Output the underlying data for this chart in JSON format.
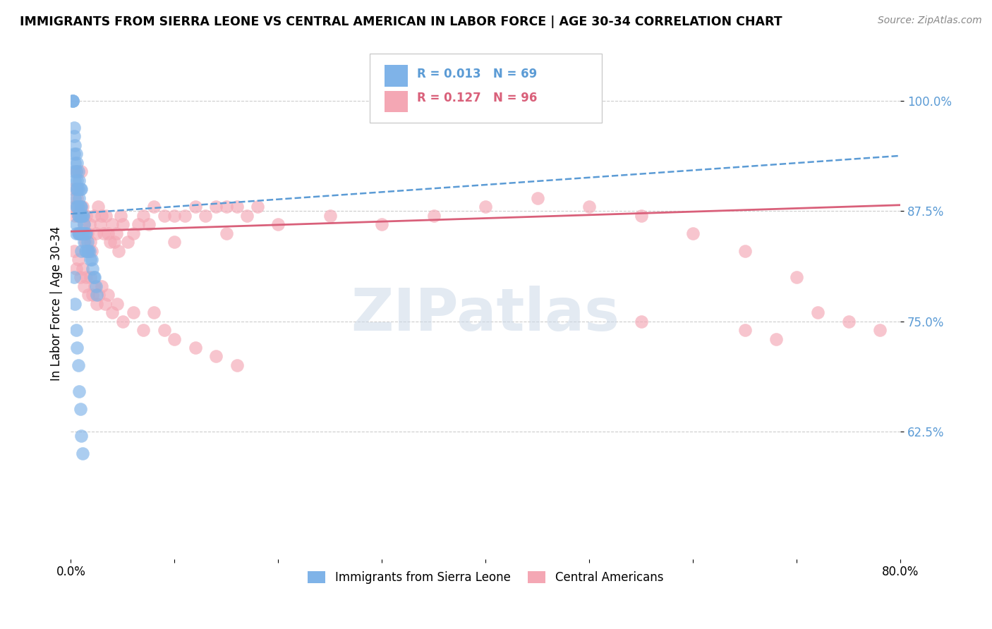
{
  "title": "IMMIGRANTS FROM SIERRA LEONE VS CENTRAL AMERICAN IN LABOR FORCE | AGE 30-34 CORRELATION CHART",
  "source": "Source: ZipAtlas.com",
  "ylabel": "In Labor Force | Age 30-34",
  "y_tick_labels": [
    "62.5%",
    "75.0%",
    "87.5%",
    "100.0%"
  ],
  "y_tick_values": [
    0.625,
    0.75,
    0.875,
    1.0
  ],
  "x_lim": [
    0.0,
    0.8
  ],
  "y_lim": [
    0.48,
    1.06
  ],
  "legend_r1": "R = 0.013",
  "legend_n1": "N = 69",
  "legend_r2": "R = 0.127",
  "legend_n2": "N = 96",
  "legend_label1": "Immigrants from Sierra Leone",
  "legend_label2": "Central Americans",
  "blue_color": "#7fb3e8",
  "pink_color": "#f4a7b4",
  "blue_line_color": "#5b9bd5",
  "pink_line_color": "#d9607a",
  "watermark": "ZIPatlas",
  "blue_scatter_x": [
    0.002,
    0.002,
    0.002,
    0.003,
    0.003,
    0.003,
    0.003,
    0.004,
    0.004,
    0.004,
    0.004,
    0.005,
    0.005,
    0.005,
    0.005,
    0.005,
    0.005,
    0.006,
    0.006,
    0.006,
    0.006,
    0.007,
    0.007,
    0.007,
    0.007,
    0.007,
    0.008,
    0.008,
    0.008,
    0.008,
    0.009,
    0.009,
    0.009,
    0.009,
    0.01,
    0.01,
    0.01,
    0.01,
    0.01,
    0.011,
    0.011,
    0.012,
    0.012,
    0.013,
    0.013,
    0.014,
    0.014,
    0.015,
    0.015,
    0.016,
    0.016,
    0.017,
    0.018,
    0.019,
    0.02,
    0.021,
    0.022,
    0.023,
    0.024,
    0.025,
    0.003,
    0.004,
    0.005,
    0.006,
    0.007,
    0.008,
    0.009,
    0.01,
    0.011
  ],
  "blue_scatter_y": [
    1.0,
    1.0,
    1.0,
    0.97,
    0.96,
    0.94,
    0.92,
    0.95,
    0.93,
    0.91,
    0.89,
    0.94,
    0.92,
    0.9,
    0.88,
    0.86,
    0.85,
    0.93,
    0.91,
    0.9,
    0.88,
    0.92,
    0.9,
    0.88,
    0.87,
    0.85,
    0.91,
    0.89,
    0.87,
    0.85,
    0.9,
    0.88,
    0.87,
    0.85,
    0.9,
    0.88,
    0.87,
    0.85,
    0.83,
    0.87,
    0.85,
    0.87,
    0.85,
    0.86,
    0.84,
    0.85,
    0.83,
    0.85,
    0.83,
    0.84,
    0.83,
    0.83,
    0.83,
    0.82,
    0.82,
    0.81,
    0.8,
    0.8,
    0.79,
    0.78,
    0.8,
    0.77,
    0.74,
    0.72,
    0.7,
    0.67,
    0.65,
    0.62,
    0.6
  ],
  "pink_scatter_x": [
    0.002,
    0.003,
    0.004,
    0.005,
    0.006,
    0.007,
    0.008,
    0.009,
    0.01,
    0.011,
    0.012,
    0.013,
    0.014,
    0.015,
    0.016,
    0.017,
    0.018,
    0.019,
    0.02,
    0.022,
    0.024,
    0.026,
    0.028,
    0.03,
    0.032,
    0.034,
    0.036,
    0.038,
    0.04,
    0.042,
    0.044,
    0.046,
    0.048,
    0.05,
    0.055,
    0.06,
    0.065,
    0.07,
    0.075,
    0.08,
    0.09,
    0.1,
    0.11,
    0.12,
    0.13,
    0.14,
    0.15,
    0.16,
    0.17,
    0.18,
    0.003,
    0.005,
    0.007,
    0.009,
    0.011,
    0.013,
    0.015,
    0.017,
    0.019,
    0.021,
    0.023,
    0.025,
    0.027,
    0.03,
    0.033,
    0.036,
    0.04,
    0.045,
    0.05,
    0.06,
    0.07,
    0.08,
    0.09,
    0.1,
    0.12,
    0.14,
    0.16,
    0.55,
    0.65,
    0.68,
    0.72,
    0.75,
    0.78,
    0.7,
    0.65,
    0.6,
    0.55,
    0.5,
    0.45,
    0.4,
    0.35,
    0.3,
    0.25,
    0.2,
    0.15,
    0.1
  ],
  "pink_scatter_y": [
    0.9,
    0.88,
    0.87,
    0.92,
    0.89,
    0.87,
    0.85,
    0.88,
    0.92,
    0.88,
    0.87,
    0.86,
    0.84,
    0.87,
    0.85,
    0.83,
    0.86,
    0.84,
    0.83,
    0.87,
    0.85,
    0.88,
    0.86,
    0.87,
    0.85,
    0.87,
    0.85,
    0.84,
    0.86,
    0.84,
    0.85,
    0.83,
    0.87,
    0.86,
    0.84,
    0.85,
    0.86,
    0.87,
    0.86,
    0.88,
    0.87,
    0.87,
    0.87,
    0.88,
    0.87,
    0.88,
    0.88,
    0.88,
    0.87,
    0.88,
    0.83,
    0.81,
    0.82,
    0.8,
    0.81,
    0.79,
    0.8,
    0.78,
    0.8,
    0.78,
    0.79,
    0.77,
    0.78,
    0.79,
    0.77,
    0.78,
    0.76,
    0.77,
    0.75,
    0.76,
    0.74,
    0.76,
    0.74,
    0.73,
    0.72,
    0.71,
    0.7,
    0.75,
    0.74,
    0.73,
    0.76,
    0.75,
    0.74,
    0.8,
    0.83,
    0.85,
    0.87,
    0.88,
    0.89,
    0.88,
    0.87,
    0.86,
    0.87,
    0.86,
    0.85,
    0.84
  ]
}
